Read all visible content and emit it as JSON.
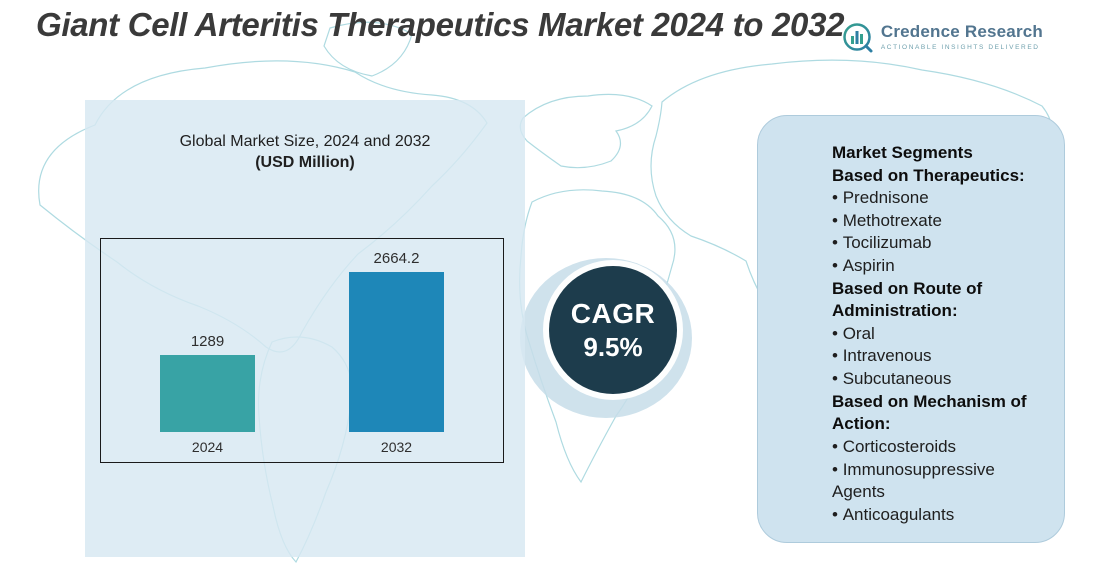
{
  "title": "Giant Cell Arteritis Therapeutics Market 2024 to 2032",
  "logo": {
    "name": "Credence Research",
    "tagline": "Actionable Insights Delivered"
  },
  "chart_data": {
    "type": "bar",
    "title": "Global Market Size, 2024 and 2032",
    "subtitle": "(USD Million)",
    "categories": [
      "2024",
      "2032"
    ],
    "values": [
      1289,
      2664.2
    ],
    "unit": "USD Million",
    "bar_colors": [
      "#38a3a5",
      "#1e87b8"
    ],
    "ylim": [
      0,
      2800
    ],
    "grid": false,
    "legend": "none"
  },
  "cagr": {
    "label": "CAGR",
    "value": "9.5%"
  },
  "segments_panel": {
    "title": "Market Segments",
    "sections": [
      {
        "heading": "Based on Therapeutics:",
        "items": [
          "Prednisone",
          "Methotrexate",
          "Tocilizumab",
          "Aspirin"
        ]
      },
      {
        "heading": "Based on Route of Administration:",
        "items": [
          "Oral",
          "Intravenous",
          "Subcutaneous"
        ]
      },
      {
        "heading": "Based on Mechanism of Action:",
        "items": [
          "Corticosteroids",
          "Immunosuppressive Agents",
          "Anticoagulants"
        ]
      }
    ]
  },
  "colors": {
    "bar_2024": "#38a3a5",
    "bar_2032": "#1e87b8",
    "cagr_circle": "#1d3c4c",
    "panel_bg": "#d7e8f2",
    "map_line": "#a6d7de"
  }
}
